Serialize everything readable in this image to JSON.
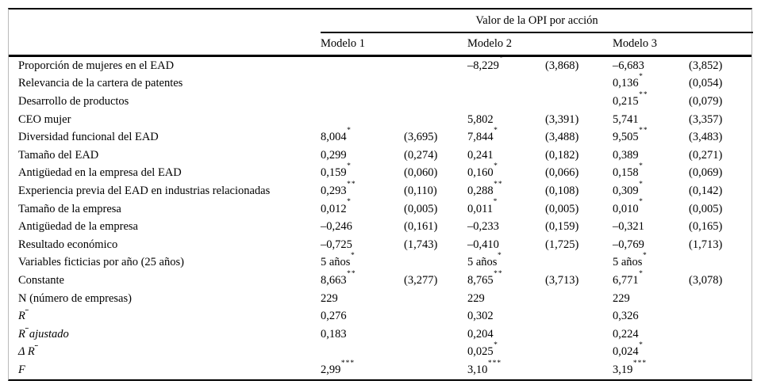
{
  "table": {
    "spanner_title": "Valor de la OPI por acción",
    "model_headers": [
      "Modelo 1",
      "Modelo 2",
      "Modelo 3"
    ],
    "column_structure": [
      "variable",
      "coeficiente",
      "error estándar"
    ],
    "rows": [
      {
        "label": "Proporción de mujeres en el EAD",
        "italic": false,
        "cells": [
          "",
          "",
          "–8,229*",
          "(3,868)",
          "–6,683",
          "(3,852)"
        ]
      },
      {
        "label": "Relevancia de la cartera de patentes",
        "italic": false,
        "cells": [
          "",
          "",
          "",
          "",
          "0,136*",
          "(0,054)"
        ]
      },
      {
        "label": "Desarrollo de productos",
        "italic": false,
        "cells": [
          "",
          "",
          "",
          "",
          "0,215**",
          "(0,079)"
        ]
      },
      {
        "label": "CEO mujer",
        "italic": false,
        "cells": [
          "",
          "",
          "5,802",
          "(3,391)",
          "5,741",
          "(3,357)"
        ]
      },
      {
        "label": "Diversidad funcional del EAD",
        "italic": false,
        "cells": [
          "8,004*",
          "(3,695)",
          "7,844*",
          "(3,488)",
          "9,505**",
          "(3,483)"
        ]
      },
      {
        "label": "Tamaño del EAD",
        "italic": false,
        "cells": [
          "0,299",
          "(0,274)",
          "0,241",
          "(0,182)",
          "0,389",
          "(0,271)"
        ]
      },
      {
        "label": "Antigüedad en la empresa del EAD",
        "italic": false,
        "cells": [
          "0,159*",
          "(0,060)",
          "0,160*",
          "(0,066)",
          "0,158*",
          "(0,069)"
        ]
      },
      {
        "label": "Experiencia previa del EAD en industrias relacionadas",
        "italic": false,
        "cells": [
          "0,293**",
          "(0,110)",
          "0,288**",
          "(0,108)",
          "0,309*",
          "(0,142)"
        ]
      },
      {
        "label": "Tamaño de la empresa",
        "italic": false,
        "cells": [
          "0,012*",
          "(0,005)",
          "0,011*",
          "(0,005)",
          "0,010*",
          "(0,005)"
        ]
      },
      {
        "label": "Antigüedad de la empresa",
        "italic": false,
        "cells": [
          "–0,246",
          "(0,161)",
          "–0,233",
          "(0,159)",
          "–0,321",
          "(0,165)"
        ]
      },
      {
        "label": "Resultado económico",
        "italic": false,
        "cells": [
          "–0,725",
          "(1,743)",
          "–0,410",
          "(1,725)",
          "–0,769",
          "(1,713)"
        ]
      },
      {
        "label": "Variables ficticias por año (25 años)",
        "italic": false,
        "cells": [
          "5 años*",
          "",
          "5 años*",
          "",
          "5 años*",
          ""
        ]
      },
      {
        "label": "Constante",
        "italic": false,
        "cells": [
          "8,663**",
          "(3,277)",
          "8,765**",
          "(3,713)",
          "6,771*",
          "(3,078)"
        ]
      },
      {
        "label": "N (número de empresas)",
        "italic": false,
        "cells": [
          "229",
          "",
          "229",
          "",
          "229",
          ""
        ]
      },
      {
        "label": "R^2",
        "italic": true,
        "cells": [
          "0,276",
          "",
          "0,302",
          "",
          "0,326",
          ""
        ]
      },
      {
        "label": "R^2ajustado",
        "italic": true,
        "cells": [
          "0,183",
          "",
          "0,204",
          "",
          "0,224",
          ""
        ]
      },
      {
        "label": "Δ R^2",
        "italic": true,
        "cells": [
          "",
          "",
          "0,025*",
          "",
          "0,024*",
          ""
        ]
      },
      {
        "label": "F",
        "italic": true,
        "cells": [
          "2,99***",
          "",
          "3,10***",
          "",
          "3,19***",
          ""
        ]
      }
    ]
  }
}
